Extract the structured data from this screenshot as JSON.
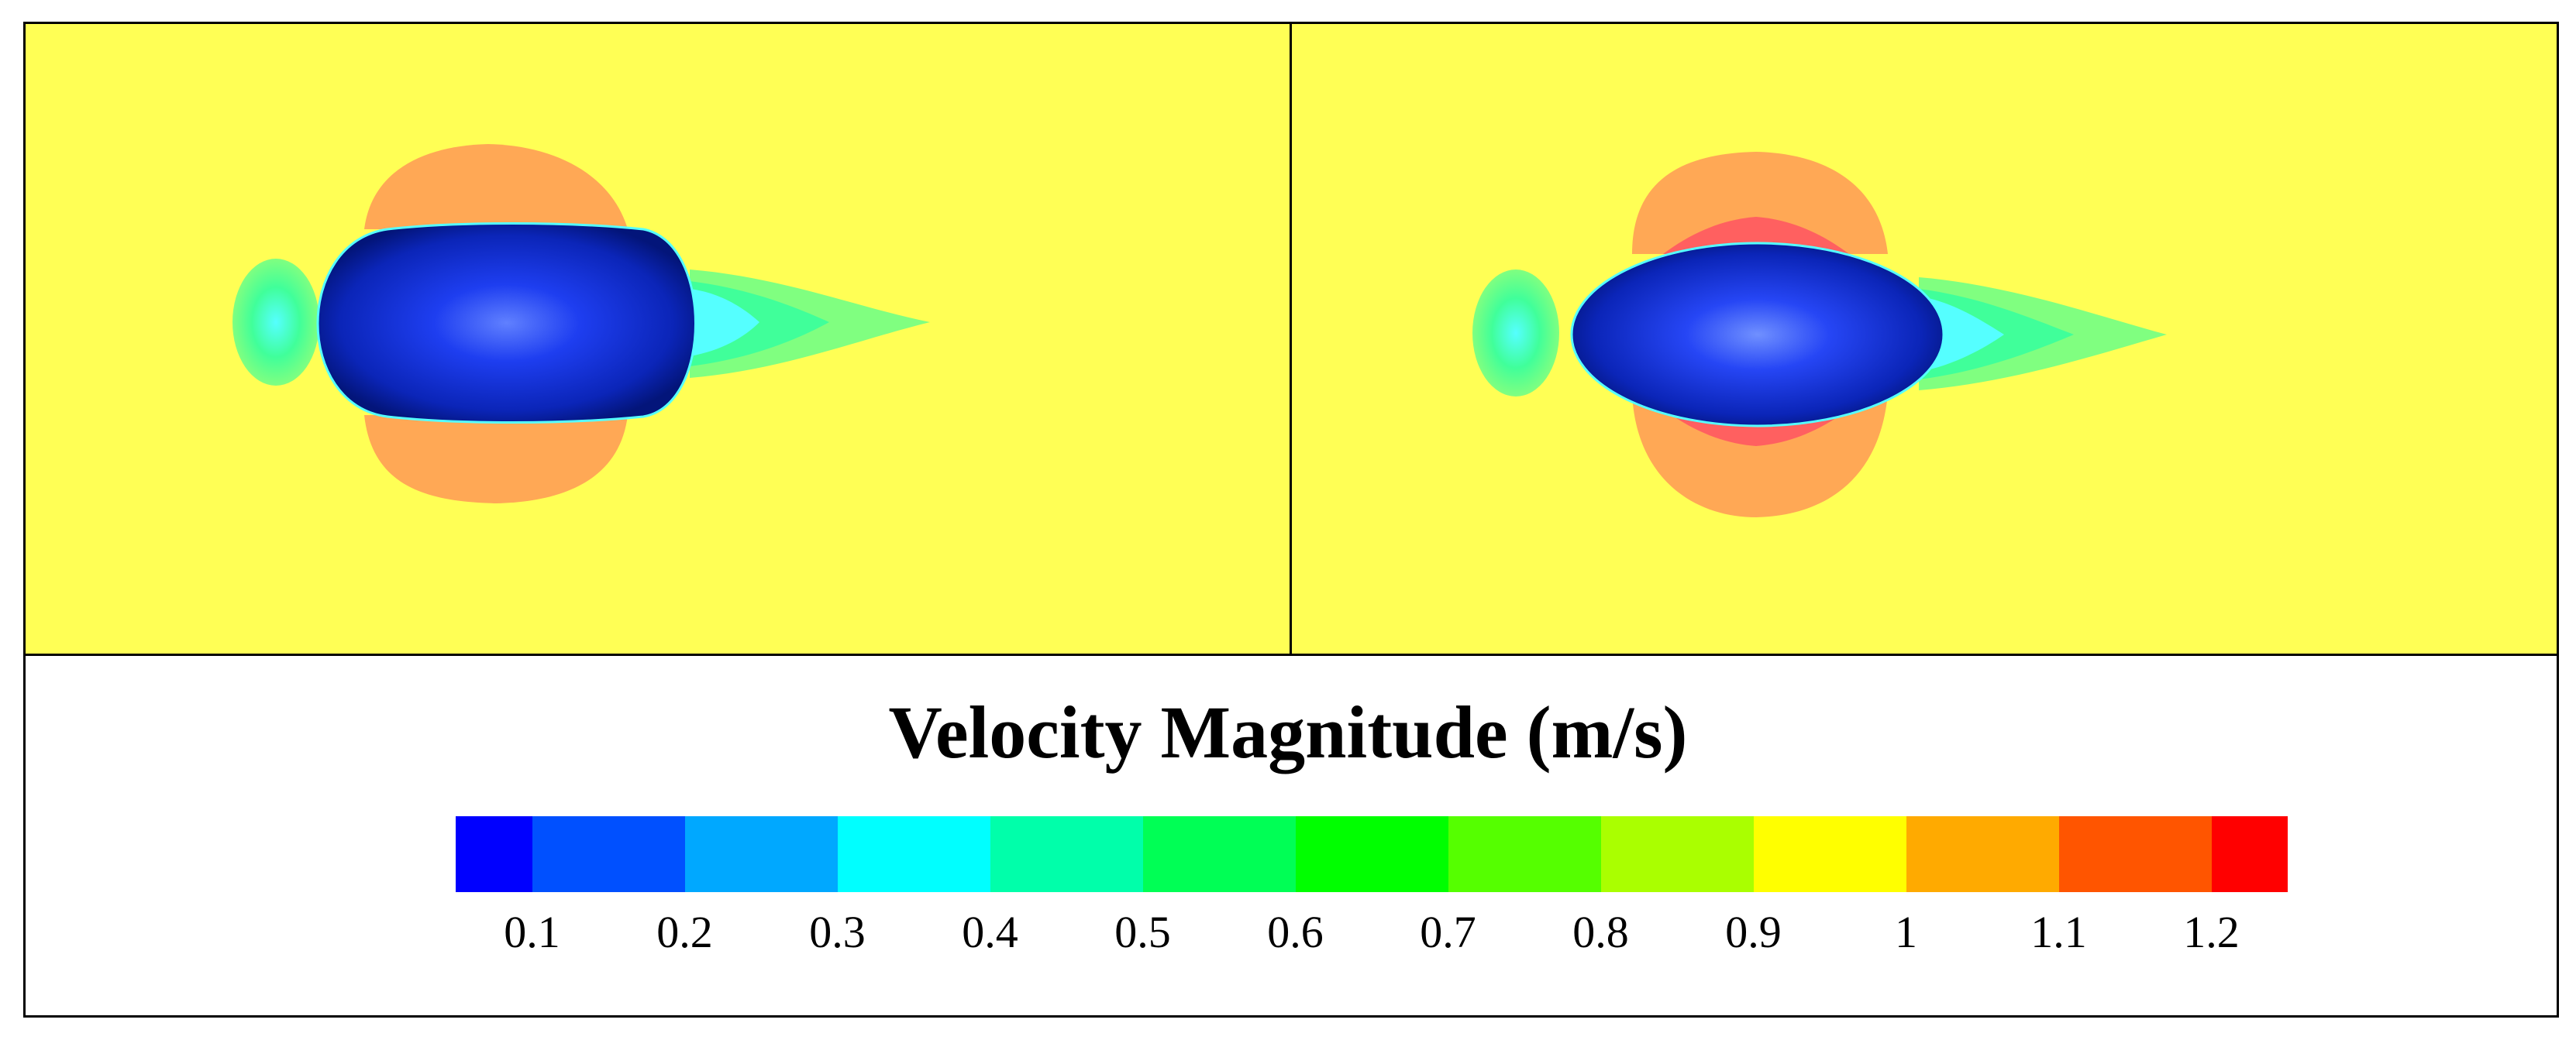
{
  "legend": {
    "title": "Velocity Magnitude (m/s)",
    "colorbar": {
      "min": 0.05,
      "max": 1.25,
      "segments": [
        {
          "from": 0.05,
          "to": 0.1,
          "color": "#0000ff"
        },
        {
          "from": 0.1,
          "to": 0.2,
          "color": "#0050ff"
        },
        {
          "from": 0.2,
          "to": 0.3,
          "color": "#00a8ff"
        },
        {
          "from": 0.3,
          "to": 0.4,
          "color": "#00ffff"
        },
        {
          "from": 0.4,
          "to": 0.5,
          "color": "#00ffaa"
        },
        {
          "from": 0.5,
          "to": 0.6,
          "color": "#00ff55"
        },
        {
          "from": 0.6,
          "to": 0.7,
          "color": "#00ff00"
        },
        {
          "from": 0.7,
          "to": 0.8,
          "color": "#55ff00"
        },
        {
          "from": 0.8,
          "to": 0.9,
          "color": "#aaff00"
        },
        {
          "from": 0.9,
          "to": 1.0,
          "color": "#ffff00"
        },
        {
          "from": 1.0,
          "to": 1.1,
          "color": "#ffaa00"
        },
        {
          "from": 1.1,
          "to": 1.2,
          "color": "#ff5500"
        },
        {
          "from": 1.2,
          "to": 1.25,
          "color": "#ff0000"
        }
      ],
      "ticks": [
        {
          "value": 0.1,
          "label": "0.1"
        },
        {
          "value": 0.2,
          "label": "0.2"
        },
        {
          "value": 0.3,
          "label": "0.3"
        },
        {
          "value": 0.4,
          "label": "0.4"
        },
        {
          "value": 0.5,
          "label": "0.5"
        },
        {
          "value": 0.6,
          "label": "0.6"
        },
        {
          "value": 0.7,
          "label": "0.7"
        },
        {
          "value": 0.8,
          "label": "0.8"
        },
        {
          "value": 0.9,
          "label": "0.9"
        },
        {
          "value": 1.0,
          "label": "1"
        },
        {
          "value": 1.1,
          "label": "1.1"
        },
        {
          "value": 1.2,
          "label": "1.2"
        }
      ]
    }
  },
  "field_colors": {
    "background": "#ffff55",
    "high_lobe": "#ffa855",
    "peak_lobe": "#ff6060",
    "wake_green": "#80ff80",
    "wake_mid": "#40ff9a",
    "wake_cyan": "#55ffff",
    "body_dark": "#001a80",
    "body_mid": "#0a2ad0",
    "body_light": "#5a7aff"
  }
}
